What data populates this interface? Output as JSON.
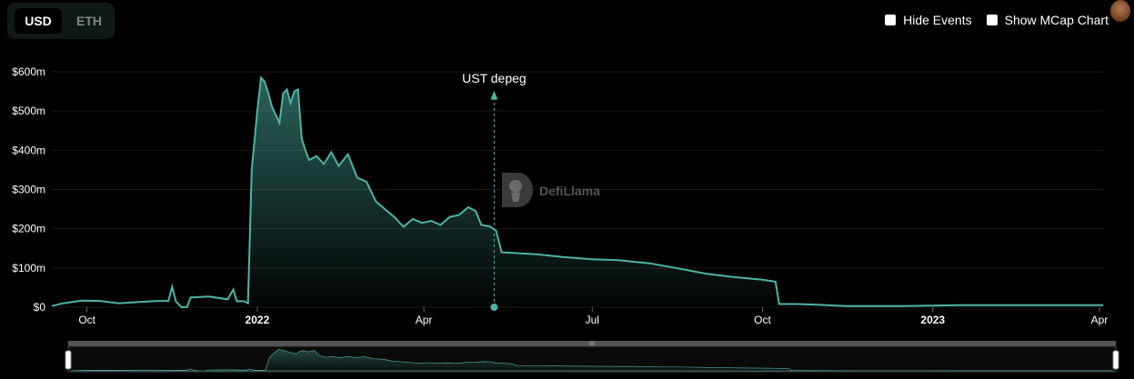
{
  "toggle": {
    "usd": "USD",
    "eth": "ETH"
  },
  "options": {
    "hide_events": "Hide Events",
    "show_mcap": "Show MCap Chart"
  },
  "watermark": "DefiLlama",
  "colors": {
    "line": "#4fb3a6",
    "background": "#000000",
    "grid": "#1a1a1a"
  },
  "chart_data": {
    "type": "area",
    "title": "",
    "xlabel": "",
    "ylabel": "",
    "x_range": [
      "2021-09-12",
      "2023-04-03"
    ],
    "ylim": [
      0,
      600
    ],
    "y_unit": "$m",
    "y_ticks": [
      {
        "value": 0,
        "label": "$0"
      },
      {
        "value": 100,
        "label": "$100m"
      },
      {
        "value": 200,
        "label": "$200m"
      },
      {
        "value": 300,
        "label": "$300m"
      },
      {
        "value": 400,
        "label": "$400m"
      },
      {
        "value": 500,
        "label": "$500m"
      },
      {
        "value": 600,
        "label": "$600m"
      }
    ],
    "x_ticks": [
      {
        "date": "2021-10-01",
        "label": "Oct",
        "bold": false
      },
      {
        "date": "2022-01-01",
        "label": "2022",
        "bold": true
      },
      {
        "date": "2022-04-01",
        "label": "Apr",
        "bold": false
      },
      {
        "date": "2022-07-01",
        "label": "Jul",
        "bold": false
      },
      {
        "date": "2022-10-01",
        "label": "Oct",
        "bold": false
      },
      {
        "date": "2023-01-01",
        "label": "2023",
        "bold": true
      },
      {
        "date": "2023-04-01",
        "label": "Apr",
        "bold": false
      }
    ],
    "grid": true,
    "event": {
      "label": "UST depeg",
      "date": "2022-05-09"
    },
    "series": [
      {
        "points": [
          [
            "2021-09-12",
            3
          ],
          [
            "2021-09-18",
            10
          ],
          [
            "2021-09-28",
            17
          ],
          [
            "2021-10-08",
            16
          ],
          [
            "2021-10-18",
            10
          ],
          [
            "2021-10-28",
            13
          ],
          [
            "2021-11-08",
            16
          ],
          [
            "2021-11-14",
            16
          ],
          [
            "2021-11-16",
            52
          ],
          [
            "2021-11-18",
            15
          ],
          [
            "2021-11-21",
            0
          ],
          [
            "2021-11-24",
            0
          ],
          [
            "2021-11-26",
            25
          ],
          [
            "2021-12-06",
            27
          ],
          [
            "2021-12-16",
            20
          ],
          [
            "2021-12-19",
            45
          ],
          [
            "2021-12-21",
            15
          ],
          [
            "2021-12-25",
            15
          ],
          [
            "2021-12-27",
            10
          ],
          [
            "2021-12-29",
            350
          ],
          [
            "2022-01-01",
            500
          ],
          [
            "2022-01-03",
            585
          ],
          [
            "2022-01-05",
            575
          ],
          [
            "2022-01-07",
            545
          ],
          [
            "2022-01-09",
            510
          ],
          [
            "2022-01-11",
            490
          ],
          [
            "2022-01-13",
            470
          ],
          [
            "2022-01-15",
            545
          ],
          [
            "2022-01-17",
            555
          ],
          [
            "2022-01-19",
            520
          ],
          [
            "2022-01-21",
            550
          ],
          [
            "2022-01-23",
            555
          ],
          [
            "2022-01-25",
            430
          ],
          [
            "2022-01-27",
            400
          ],
          [
            "2022-01-29",
            375
          ],
          [
            "2022-02-02",
            385
          ],
          [
            "2022-02-06",
            365
          ],
          [
            "2022-02-10",
            395
          ],
          [
            "2022-02-14",
            360
          ],
          [
            "2022-02-19",
            390
          ],
          [
            "2022-02-24",
            330
          ],
          [
            "2022-03-01",
            320
          ],
          [
            "2022-03-06",
            270
          ],
          [
            "2022-03-11",
            250
          ],
          [
            "2022-03-16",
            230
          ],
          [
            "2022-03-21",
            205
          ],
          [
            "2022-03-26",
            225
          ],
          [
            "2022-03-31",
            215
          ],
          [
            "2022-04-05",
            220
          ],
          [
            "2022-04-10",
            210
          ],
          [
            "2022-04-15",
            230
          ],
          [
            "2022-04-20",
            235
          ],
          [
            "2022-04-25",
            255
          ],
          [
            "2022-04-29",
            245
          ],
          [
            "2022-05-02",
            210
          ],
          [
            "2022-05-07",
            205
          ],
          [
            "2022-05-10",
            195
          ],
          [
            "2022-05-13",
            140
          ],
          [
            "2022-05-20",
            138
          ],
          [
            "2022-06-01",
            135
          ],
          [
            "2022-06-15",
            128
          ],
          [
            "2022-07-01",
            122
          ],
          [
            "2022-07-15",
            120
          ],
          [
            "2022-08-01",
            112
          ],
          [
            "2022-08-15",
            100
          ],
          [
            "2022-09-01",
            85
          ],
          [
            "2022-09-15",
            77
          ],
          [
            "2022-10-01",
            70
          ],
          [
            "2022-10-08",
            65
          ],
          [
            "2022-10-10",
            8
          ],
          [
            "2022-10-20",
            8
          ],
          [
            "2022-11-01",
            6
          ],
          [
            "2022-11-15",
            3
          ],
          [
            "2022-12-15",
            3
          ],
          [
            "2023-01-15",
            5
          ],
          [
            "2023-02-15",
            5
          ],
          [
            "2023-03-15",
            5
          ],
          [
            "2023-04-03",
            5
          ]
        ]
      }
    ]
  }
}
